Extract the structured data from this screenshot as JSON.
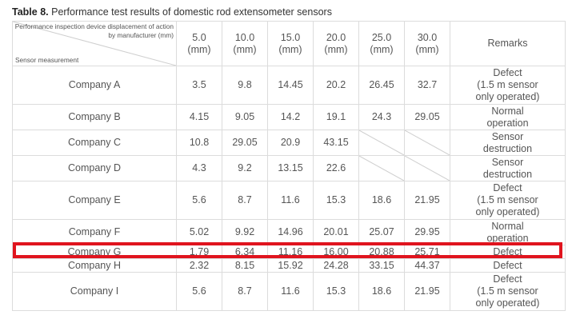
{
  "caption": {
    "label": "Table 8.",
    "text": "Performance test results of domestic rod extensometer sensors"
  },
  "header": {
    "corner_top_line1": "Performance inspection device displacement of action",
    "corner_top_line2": "by manufacturer (mm)",
    "corner_bottom": "Sensor measurement",
    "columns": [
      {
        "value": "5.0",
        "unit": "(mm)"
      },
      {
        "value": "10.0",
        "unit": "(mm)"
      },
      {
        "value": "15.0",
        "unit": "(mm)"
      },
      {
        "value": "20.0",
        "unit": "(mm)"
      },
      {
        "value": "25.0",
        "unit": "(mm)"
      },
      {
        "value": "30.0",
        "unit": "(mm)"
      }
    ],
    "remarks": "Remarks"
  },
  "rows": [
    {
      "company": "Company A",
      "values": [
        "3.5",
        "9.8",
        "14.45",
        "20.2",
        "26.45",
        "32.7"
      ],
      "remarks": [
        "Defect",
        "(1.5 m sensor",
        "only operated)"
      ]
    },
    {
      "company": "Company B",
      "values": [
        "4.15",
        "9.05",
        "14.2",
        "19.1",
        "24.3",
        "29.05"
      ],
      "remarks": [
        "Normal",
        "operation"
      ]
    },
    {
      "company": "Company C",
      "values": [
        "10.8",
        "29.05",
        "20.9",
        "43.15"
      ],
      "remarks": [
        "Sensor",
        "destruction"
      ]
    },
    {
      "company": "Company D",
      "values": [
        "4.3",
        "9.2",
        "13.15",
        "22.6"
      ],
      "remarks": [
        "Sensor",
        "destruction"
      ]
    },
    {
      "company": "Company E",
      "values": [
        "5.6",
        "8.7",
        "11.6",
        "15.3",
        "18.6",
        "21.95"
      ],
      "remarks": [
        "Defect",
        "(1.5 m sensor",
        "only operated)"
      ]
    },
    {
      "company": "Company F",
      "values": [
        "5.02",
        "9.92",
        "14.96",
        "20.01",
        "25.07",
        "29.95"
      ],
      "remarks": [
        "Normal",
        "operation"
      ]
    },
    {
      "company": "Company G",
      "values": [
        "1.79",
        "6.34",
        "11.16",
        "16.00",
        "20.88",
        "25.71"
      ],
      "remarks": [
        "Defect"
      ]
    },
    {
      "company": "Company H",
      "values": [
        "2.32",
        "8.15",
        "15.92",
        "24.28",
        "33.15",
        "44.37"
      ],
      "remarks": [
        "Defect"
      ]
    },
    {
      "company": "Company I",
      "values": [
        "5.6",
        "8.7",
        "11.6",
        "15.3",
        "18.6",
        "21.95"
      ],
      "remarks": [
        "Defect",
        "(1.5 m sensor",
        "only operated)"
      ]
    }
  ],
  "colors": {
    "highlight": "#e0141e",
    "border": "#dcdcdc",
    "text": "#555555"
  }
}
